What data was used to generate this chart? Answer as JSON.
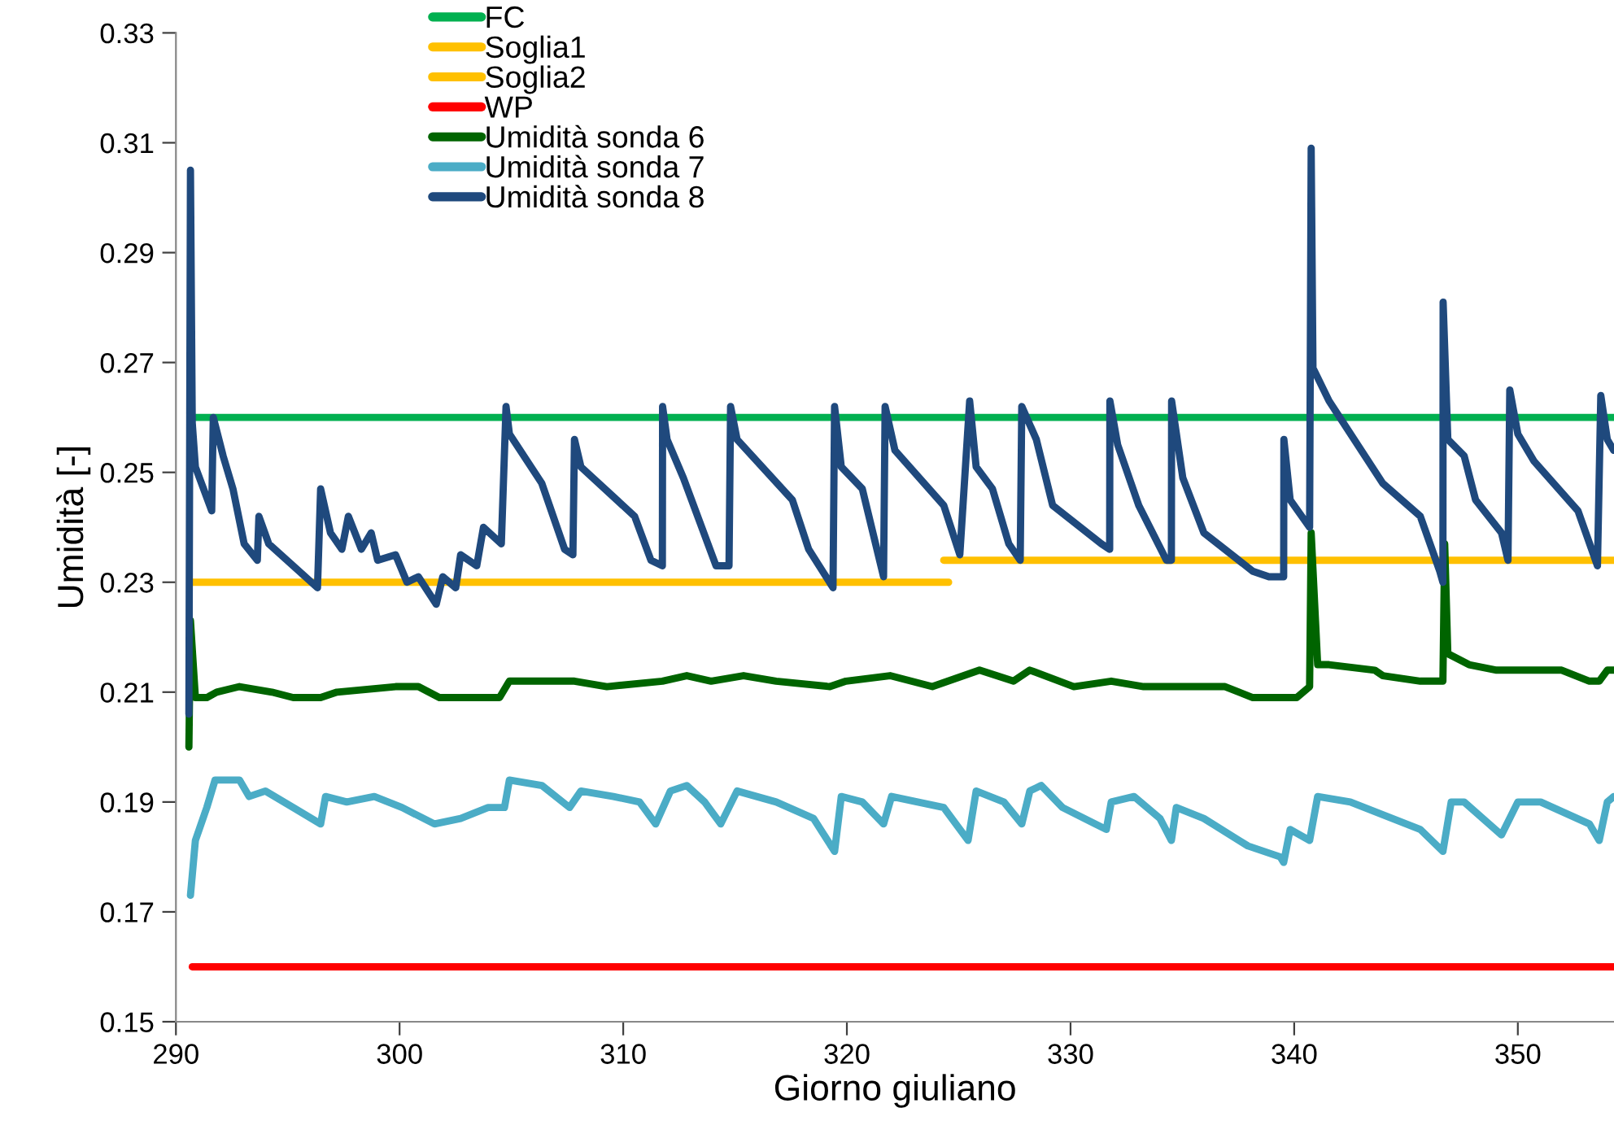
{
  "chart_data": {
    "type": "line",
    "xlabel": "Giorno giuliano",
    "ylabel": "Umidità [-]",
    "xlim": [
      290,
      354.3
    ],
    "xticks": [
      290,
      300,
      310,
      320,
      330,
      340,
      350
    ],
    "ylim": [
      0.15,
      0.33
    ],
    "yticks": [
      0.15,
      0.17,
      0.19,
      0.21,
      0.23,
      0.25,
      0.27,
      0.29,
      0.31,
      0.33
    ],
    "grid": false,
    "legend": "top left",
    "marker": "none",
    "line_style": "solid",
    "series": [
      {
        "name": "FC",
        "color": "#00b050",
        "x": [
          290.73,
          354.29
        ],
        "values": [
          0.26,
          0.26
        ]
      },
      {
        "name": "Soglia1",
        "color": "#ffc000",
        "x": [
          290.73,
          324.55
        ],
        "values": [
          0.23,
          0.23
        ]
      },
      {
        "name": "Soglia2",
        "color": "#ffc000",
        "x": [
          324.33,
          354.29
        ],
        "values": [
          0.234,
          0.234
        ]
      },
      {
        "name": "WP",
        "color": "#ff0000",
        "x": [
          290.73,
          354.29
        ],
        "values": [
          0.16,
          0.16
        ]
      },
      {
        "name": "Umidità sonda 6",
        "color": "#006400",
        "x": [
          290.58,
          290.65,
          290.87,
          291.38,
          291.82,
          292.84,
          294.29,
          295.24,
          296.47,
          297.2,
          299.82,
          300.84,
          301.78,
          304.47,
          304.91,
          306.36,
          307.82,
          309.27,
          311.75,
          312.84,
          313.93,
          315.38,
          316.84,
          319.24,
          319.96,
          321.93,
          323.82,
          325.93,
          327.45,
          328.18,
          330.15,
          331.82,
          333.27,
          336.91,
          338.15,
          340.11,
          340.69,
          340.76,
          341.05,
          341.56,
          343.6,
          343.96,
          345.64,
          346.65,
          346.73,
          346.87,
          347.82,
          349.05,
          350.0,
          351.96,
          353.2,
          353.64,
          354.0,
          354.29
        ],
        "values": [
          0.2,
          0.223,
          0.209,
          0.209,
          0.21,
          0.211,
          0.21,
          0.209,
          0.209,
          0.21,
          0.211,
          0.211,
          0.209,
          0.209,
          0.212,
          0.212,
          0.212,
          0.211,
          0.212,
          0.213,
          0.212,
          0.213,
          0.212,
          0.211,
          0.212,
          0.213,
          0.211,
          0.214,
          0.212,
          0.214,
          0.211,
          0.212,
          0.211,
          0.211,
          0.209,
          0.209,
          0.211,
          0.239,
          0.215,
          0.215,
          0.214,
          0.213,
          0.212,
          0.212,
          0.237,
          0.217,
          0.215,
          0.214,
          0.214,
          0.214,
          0.212,
          0.212,
          0.214,
          0.214
        ]
      },
      {
        "name": "Umidità sonda 7",
        "color": "#4bacc6",
        "x": [
          290.65,
          290.87,
          291.38,
          291.75,
          292.84,
          293.27,
          294.0,
          295.24,
          296.47,
          296.69,
          297.64,
          298.87,
          300.11,
          301.56,
          302.73,
          303.96,
          304.69,
          304.91,
          306.36,
          307.6,
          308.11,
          309.56,
          310.73,
          311.45,
          312.11,
          312.84,
          313.64,
          314.36,
          315.09,
          316.84,
          318.51,
          319.45,
          319.75,
          320.69,
          321.64,
          322.0,
          324.33,
          325.42,
          325.78,
          327.02,
          327.82,
          328.18,
          328.69,
          329.64,
          331.6,
          331.82,
          332.84,
          334.0,
          334.51,
          334.73,
          335.96,
          337.93,
          339.38,
          339.53,
          339.82,
          340.69,
          341.05,
          342.51,
          345.64,
          346.65,
          347.02,
          347.6,
          349.27,
          350.0,
          351.02,
          353.2,
          353.64,
          354.0,
          354.29
        ],
        "values": [
          0.173,
          0.183,
          0.189,
          0.194,
          0.194,
          0.191,
          0.192,
          0.189,
          0.186,
          0.191,
          0.19,
          0.191,
          0.189,
          0.186,
          0.187,
          0.189,
          0.189,
          0.194,
          0.193,
          0.189,
          0.192,
          0.191,
          0.19,
          0.186,
          0.192,
          0.193,
          0.19,
          0.186,
          0.192,
          0.19,
          0.187,
          0.181,
          0.191,
          0.19,
          0.186,
          0.191,
          0.189,
          0.183,
          0.192,
          0.19,
          0.186,
          0.192,
          0.193,
          0.189,
          0.185,
          0.19,
          0.191,
          0.187,
          0.183,
          0.189,
          0.187,
          0.182,
          0.18,
          0.179,
          0.185,
          0.183,
          0.191,
          0.19,
          0.185,
          0.181,
          0.19,
          0.19,
          0.184,
          0.19,
          0.19,
          0.186,
          0.183,
          0.19,
          0.191
        ]
      },
      {
        "name": "Umidità sonda 8",
        "color": "#1f497d",
        "x": [
          290.58,
          290.65,
          290.73,
          290.87,
          291.6,
          291.67,
          292.11,
          292.55,
          293.05,
          293.64,
          293.71,
          294.15,
          295.24,
          296.33,
          296.47,
          296.91,
          297.42,
          297.71,
          298.29,
          298.73,
          299.02,
          299.82,
          300.33,
          300.84,
          301.64,
          301.93,
          302.51,
          302.73,
          303.45,
          303.75,
          304.55,
          304.76,
          304.91,
          306.36,
          307.38,
          307.75,
          307.82,
          308.11,
          310.51,
          311.24,
          311.75,
          311.76,
          311.96,
          312.69,
          313.42,
          314.15,
          314.73,
          314.8,
          315.09,
          317.56,
          318.29,
          319.38,
          319.45,
          319.75,
          320.69,
          321.64,
          321.71,
          322.15,
          324.33,
          325.05,
          325.49,
          325.78,
          326.51,
          327.24,
          327.75,
          327.82,
          328.47,
          329.2,
          331.38,
          331.75,
          331.76,
          332.11,
          333.05,
          334.29,
          334.51,
          334.52,
          335.02,
          335.96,
          338.15,
          338.87,
          339.53,
          339.54,
          339.82,
          340.69,
          340.76,
          340.84,
          341.56,
          343.96,
          345.64,
          346.51,
          346.65,
          346.66,
          346.87,
          347.6,
          348.11,
          349.27,
          349.56,
          349.64,
          350.0,
          350.73,
          352.69,
          353.56,
          353.71,
          354.0,
          354.29
        ],
        "values": [
          0.206,
          0.305,
          0.259,
          0.251,
          0.243,
          0.26,
          0.253,
          0.247,
          0.237,
          0.234,
          0.242,
          0.237,
          0.233,
          0.229,
          0.247,
          0.239,
          0.236,
          0.242,
          0.236,
          0.239,
          0.234,
          0.235,
          0.23,
          0.231,
          0.226,
          0.231,
          0.229,
          0.235,
          0.233,
          0.24,
          0.237,
          0.262,
          0.257,
          0.248,
          0.236,
          0.235,
          0.256,
          0.251,
          0.242,
          0.234,
          0.233,
          0.262,
          0.256,
          0.249,
          0.241,
          0.233,
          0.233,
          0.262,
          0.256,
          0.245,
          0.236,
          0.229,
          0.262,
          0.251,
          0.247,
          0.231,
          0.262,
          0.254,
          0.244,
          0.235,
          0.263,
          0.251,
          0.247,
          0.237,
          0.234,
          0.262,
          0.256,
          0.244,
          0.237,
          0.236,
          0.263,
          0.255,
          0.244,
          0.234,
          0.234,
          0.263,
          0.249,
          0.239,
          0.232,
          0.231,
          0.231,
          0.256,
          0.245,
          0.24,
          0.309,
          0.269,
          0.263,
          0.248,
          0.242,
          0.232,
          0.23,
          0.281,
          0.256,
          0.253,
          0.245,
          0.239,
          0.234,
          0.265,
          0.257,
          0.252,
          0.243,
          0.233,
          0.264,
          0.256,
          0.254
        ]
      }
    ]
  }
}
